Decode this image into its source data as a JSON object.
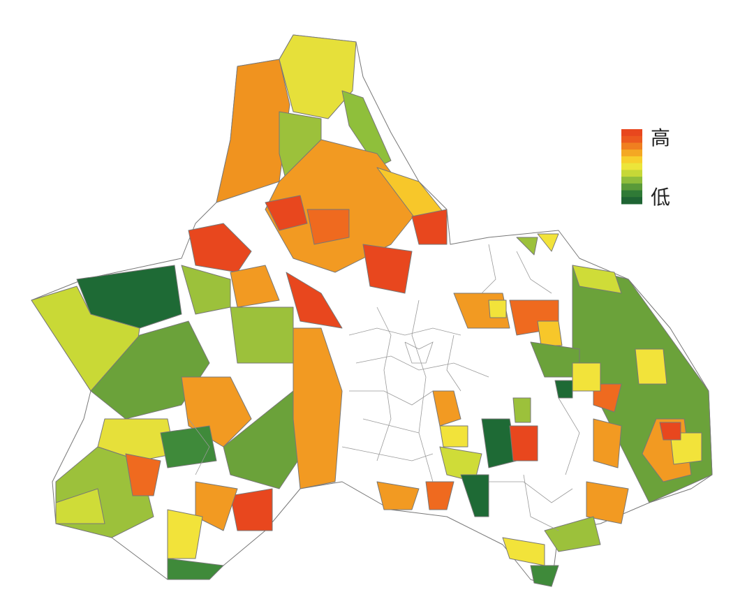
{
  "legend": {
    "high": "高",
    "low": "低",
    "colors": [
      "#e8471e",
      "#ec5a1f",
      "#f07f20",
      "#f4a823",
      "#f7cf2c",
      "#ece53a",
      "#c6d837",
      "#8fbd3b",
      "#5a9a39",
      "#2f7a36",
      "#1e6433"
    ]
  }
}
